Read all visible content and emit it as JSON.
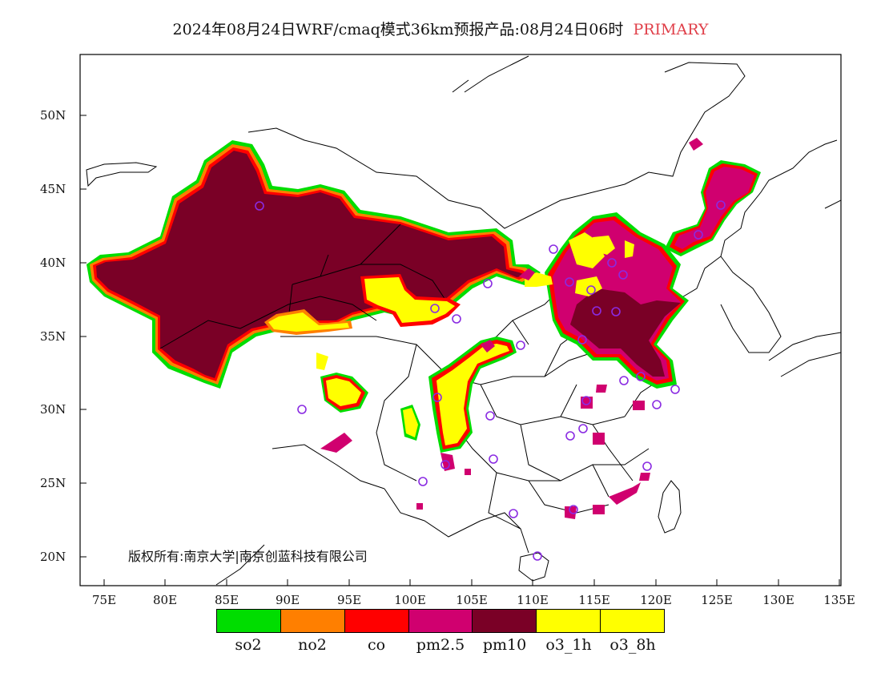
{
  "title": {
    "main": "2024年08月24日WRF/cmaq模式36km预报产品:08月24日06时",
    "tag": "PRIMARY"
  },
  "axes": {
    "lat_labels": [
      "50N",
      "45N",
      "40N",
      "35N",
      "30N",
      "25N",
      "20N"
    ],
    "lon_labels": [
      "75E",
      "80E",
      "85E",
      "90E",
      "95E",
      "100E",
      "105E",
      "110E",
      "115E",
      "120E",
      "125E",
      "130E",
      "135E"
    ]
  },
  "copyright": "版权所有:南京大学|南京创蓝科技有限公司",
  "colors": {
    "so2": "#00dd00",
    "no2": "#ff7f00",
    "co": "#ff0000",
    "pm25": "#d0006f",
    "pm10": "#7a0026",
    "o3": "#ffff00"
  },
  "legend": [
    {
      "label": "so2",
      "color": "#00dd00"
    },
    {
      "label": "no2",
      "color": "#ff7f00"
    },
    {
      "label": "co",
      "color": "#ff0000"
    },
    {
      "label": "pm2.5",
      "color": "#d0006f"
    },
    {
      "label": "pm10",
      "color": "#7a0026"
    },
    {
      "label": "o3_1h",
      "color": "#ffff00"
    },
    {
      "label": "o3_8h",
      "color": "#ffff00"
    }
  ]
}
